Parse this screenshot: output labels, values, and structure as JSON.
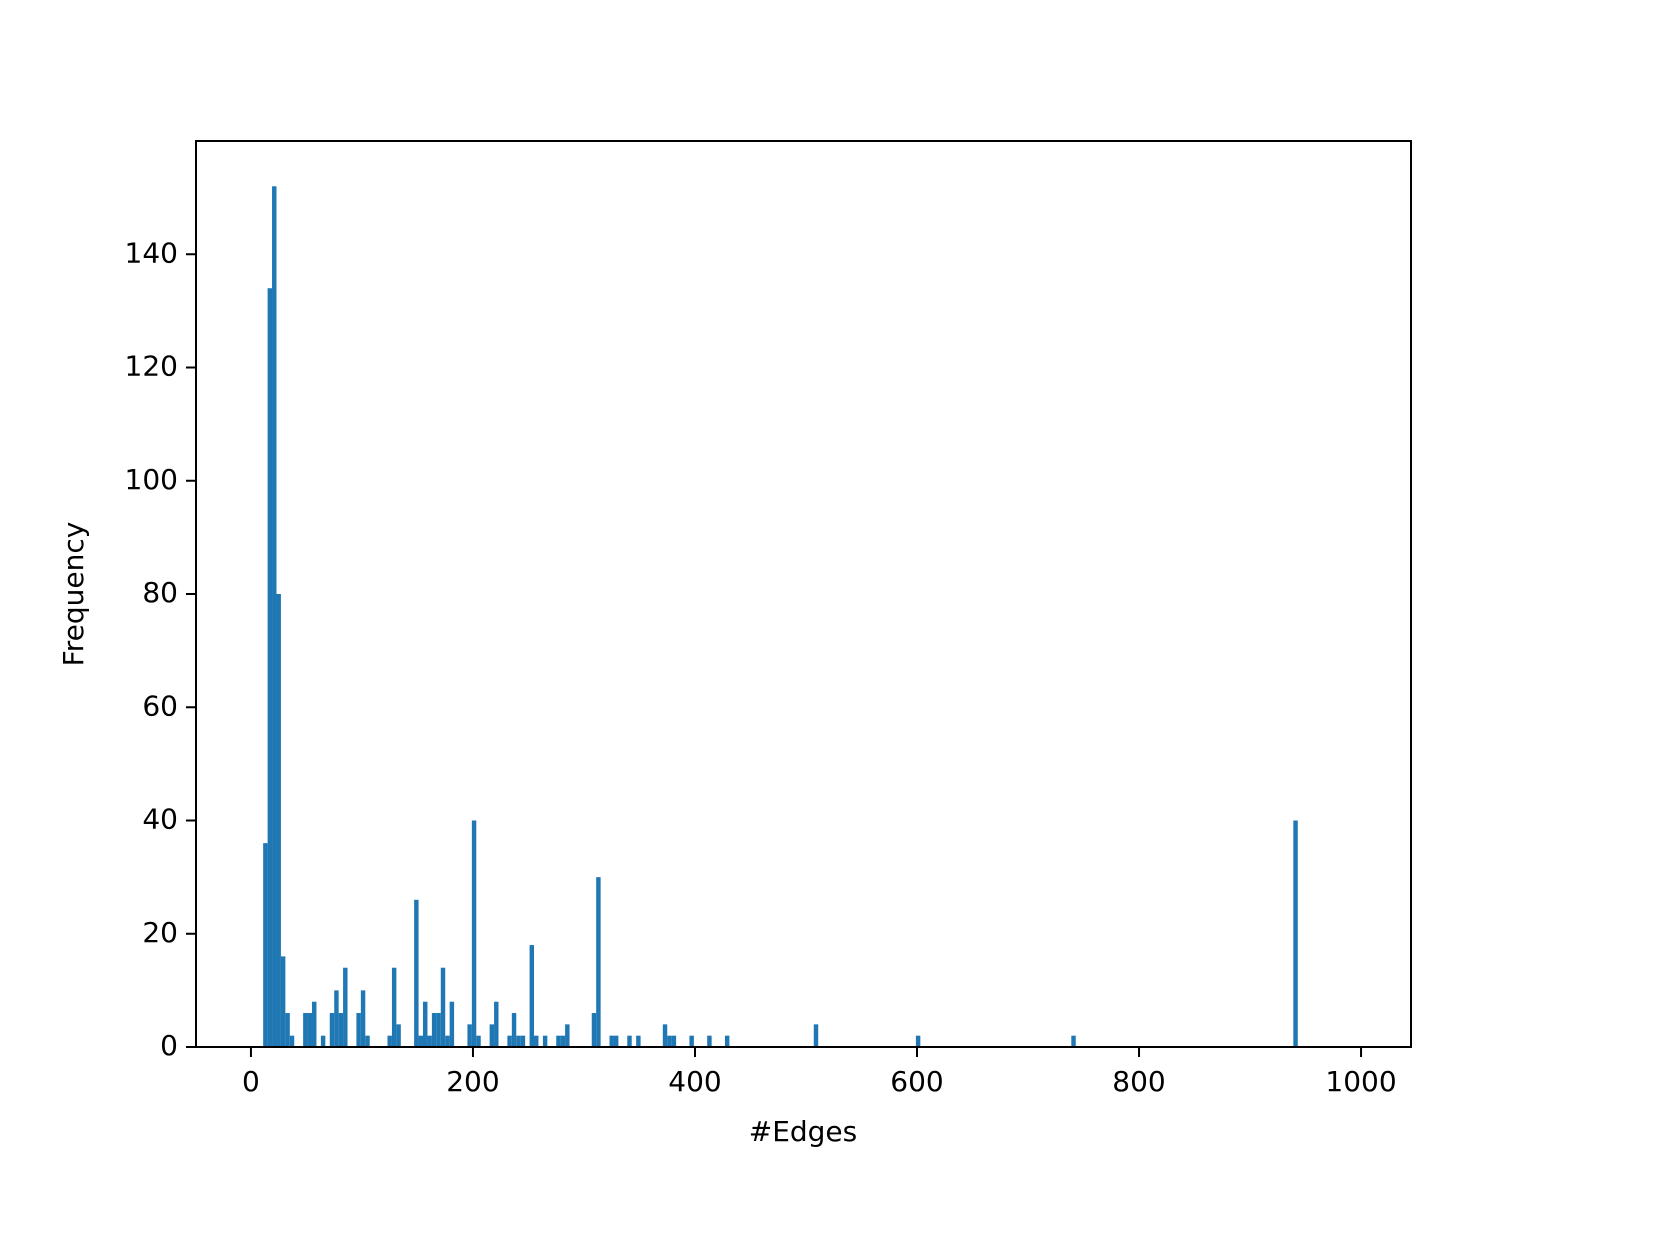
{
  "chart_data": {
    "type": "histogram",
    "xlabel": "#Edges",
    "ylabel": "Frequency",
    "color": "#1f77b4",
    "bins": [
      11,
      15,
      19,
      23,
      27,
      31,
      35,
      39,
      47,
      51,
      55,
      59,
      63,
      67,
      71,
      75,
      79,
      83,
      87,
      95,
      99,
      103,
      107,
      123,
      127,
      131,
      135,
      147,
      151,
      155,
      159,
      163,
      167,
      171,
      175,
      179,
      183,
      195,
      199,
      203,
      207,
      215,
      219,
      223,
      231,
      235,
      239,
      243,
      247,
      251,
      255,
      259,
      263,
      267,
      275,
      279,
      283,
      287,
      307,
      311,
      315,
      323,
      327,
      331,
      339,
      343,
      347,
      351,
      371,
      375,
      379,
      383,
      395,
      399,
      411,
      415,
      427,
      431,
      507,
      511,
      599,
      603,
      739,
      743,
      939,
      943
    ],
    "values": [
      36,
      134,
      152,
      80,
      16,
      6,
      2,
      0,
      6,
      6,
      8,
      0,
      2,
      0,
      6,
      10,
      6,
      14,
      0,
      6,
      10,
      2,
      0,
      2,
      14,
      4,
      0,
      26,
      2,
      8,
      2,
      6,
      6,
      14,
      2,
      8,
      0,
      4,
      40,
      2,
      0,
      4,
      8,
      0,
      2,
      6,
      2,
      2,
      0,
      18,
      2,
      0,
      2,
      0,
      2,
      2,
      4,
      0,
      6,
      30,
      0,
      2,
      2,
      0,
      2,
      0,
      2,
      0,
      4,
      2,
      2,
      0,
      2,
      0,
      2,
      0,
      2,
      0,
      4,
      0,
      2,
      0,
      2,
      0,
      40
    ],
    "xlim": [
      -49.5,
      1045
    ],
    "ylim": [
      0,
      160
    ],
    "xticks": [
      0,
      200,
      400,
      600,
      800,
      1000
    ],
    "yticks": [
      0,
      20,
      40,
      60,
      80,
      100,
      120,
      140
    ]
  }
}
